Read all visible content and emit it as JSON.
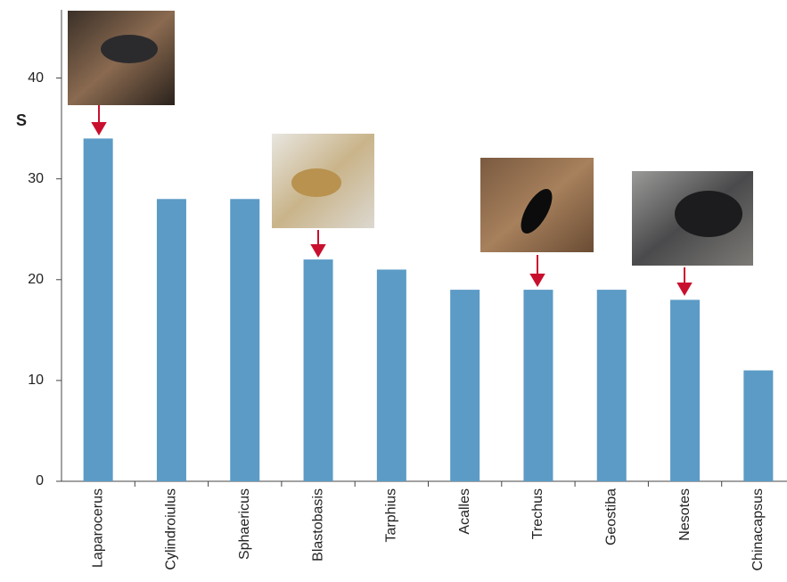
{
  "chart_data": {
    "type": "bar",
    "y_label": "S",
    "categories": [
      "Laparocerus",
      "Cylindroiulus",
      "Sphaericus",
      "Blastobasis",
      "Tarphius",
      "Acalles",
      "Trechus",
      "Geostiba",
      "Nesotes",
      "Chinacapsus"
    ],
    "values": [
      34,
      28,
      28,
      22,
      21,
      19,
      19,
      19,
      18,
      11
    ],
    "color": "#5b9bc6",
    "ylim": [
      0,
      45
    ],
    "yticks": [
      0,
      10,
      20,
      30,
      40
    ],
    "grid": false
  }
}
